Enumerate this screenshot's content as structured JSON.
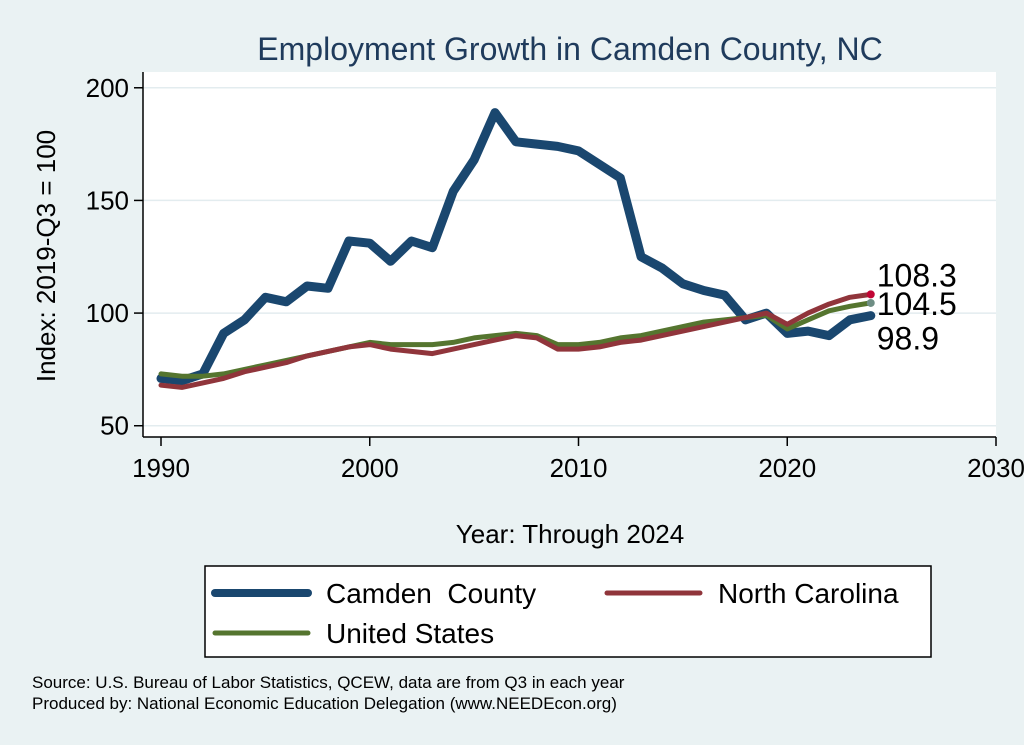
{
  "chart_data": {
    "type": "line",
    "title": "Employment Growth in Camden County, NC",
    "xlabel": "Year: Through 2024",
    "ylabel": "Index: 2019-Q3 = 100",
    "xlim": [
      1990,
      2030
    ],
    "ylim": [
      45,
      207
    ],
    "xticks": [
      1990,
      2000,
      2010,
      2020,
      2030
    ],
    "yticks": [
      50,
      100,
      150,
      200
    ],
    "grid": true,
    "legend_position": "bottom",
    "x": [
      1990,
      1991,
      1992,
      1993,
      1994,
      1995,
      1996,
      1997,
      1998,
      1999,
      2000,
      2001,
      2002,
      2003,
      2004,
      2005,
      2006,
      2007,
      2008,
      2009,
      2010,
      2011,
      2012,
      2013,
      2014,
      2015,
      2016,
      2017,
      2018,
      2019,
      2020,
      2021,
      2022,
      2023,
      2024
    ],
    "series": [
      {
        "name": "Camden  County",
        "color": "#1a476f",
        "values": [
          71,
          70,
          73,
          91,
          97,
          107,
          105,
          112,
          111,
          132,
          131,
          123,
          132,
          129,
          154,
          168,
          189,
          176,
          175,
          174,
          172,
          166,
          160,
          125,
          120,
          113,
          110,
          108,
          97,
          100,
          91,
          92,
          90,
          97,
          98.9
        ],
        "end_label": "98.9"
      },
      {
        "name": "North Carolina",
        "color": "#90353b",
        "values": [
          68,
          67,
          69,
          71,
          74,
          76,
          78,
          81,
          83,
          85,
          86,
          84,
          83,
          82,
          84,
          86,
          88,
          90,
          89,
          84,
          84,
          85,
          87,
          88,
          90,
          92,
          94,
          96,
          98,
          100,
          95,
          100,
          104,
          107,
          108.3
        ],
        "end_label": "108.3"
      },
      {
        "name": "United States",
        "color": "#55752f",
        "values": [
          73,
          72,
          72,
          73,
          75,
          77,
          79,
          81,
          83,
          85,
          87,
          86,
          86,
          86,
          87,
          89,
          90,
          91,
          90,
          86,
          86,
          87,
          89,
          90,
          92,
          94,
          96,
          97,
          98,
          99,
          93,
          97,
          101,
          103,
          104.5
        ],
        "end_label": "104.5"
      }
    ],
    "source_lines": [
      "Source: U.S. Bureau of Labor Statistics, QCEW, data are from Q3 in each year",
      "Produced by: National Economic Education Delegation (www.NEEDEcon.org)"
    ]
  }
}
